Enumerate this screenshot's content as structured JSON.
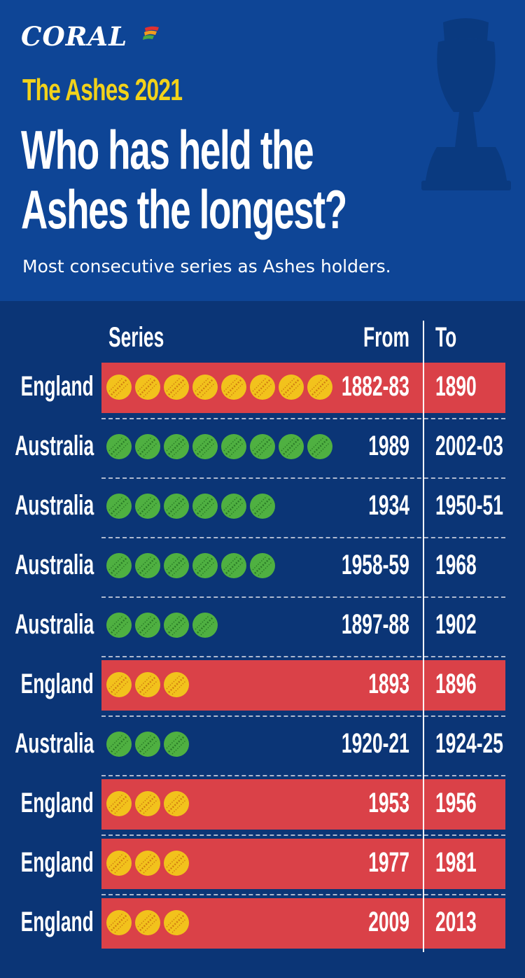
{
  "brand": {
    "name": "CORAL"
  },
  "header": {
    "subtitle": "The Ashes 2021",
    "title_line1": "Who has held the",
    "title_line2": "Ashes the longest?",
    "description": "Most consecutive series as Ashes holders."
  },
  "colors": {
    "england_band": "#da4148",
    "england_ball": "#f2c21c",
    "australia_ball": "#4fb041",
    "background": "#0b3576",
    "header_bg": "#0e4596"
  },
  "chart_data": {
    "type": "table",
    "columns": [
      "Series",
      "From",
      "To"
    ],
    "rows": [
      {
        "team": "England",
        "series": 8,
        "from": "1882-83",
        "to": "1890"
      },
      {
        "team": "Australia",
        "series": 8,
        "from": "1989",
        "to": "2002-03"
      },
      {
        "team": "Australia",
        "series": 6,
        "from": "1934",
        "to": "1950-51"
      },
      {
        "team": "Australia",
        "series": 6,
        "from": "1958-59",
        "to": "1968"
      },
      {
        "team": "Australia",
        "series": 4,
        "from": "1897-88",
        "to": "1902"
      },
      {
        "team": "England",
        "series": 3,
        "from": "1893",
        "to": "1896"
      },
      {
        "team": "Australia",
        "series": 3,
        "from": "1920-21",
        "to": "1924-25"
      },
      {
        "team": "England",
        "series": 3,
        "from": "1953",
        "to": "1956"
      },
      {
        "team": "England",
        "series": 3,
        "from": "1977",
        "to": "1981"
      },
      {
        "team": "England",
        "series": 3,
        "from": "2009",
        "to": "2013"
      }
    ]
  }
}
